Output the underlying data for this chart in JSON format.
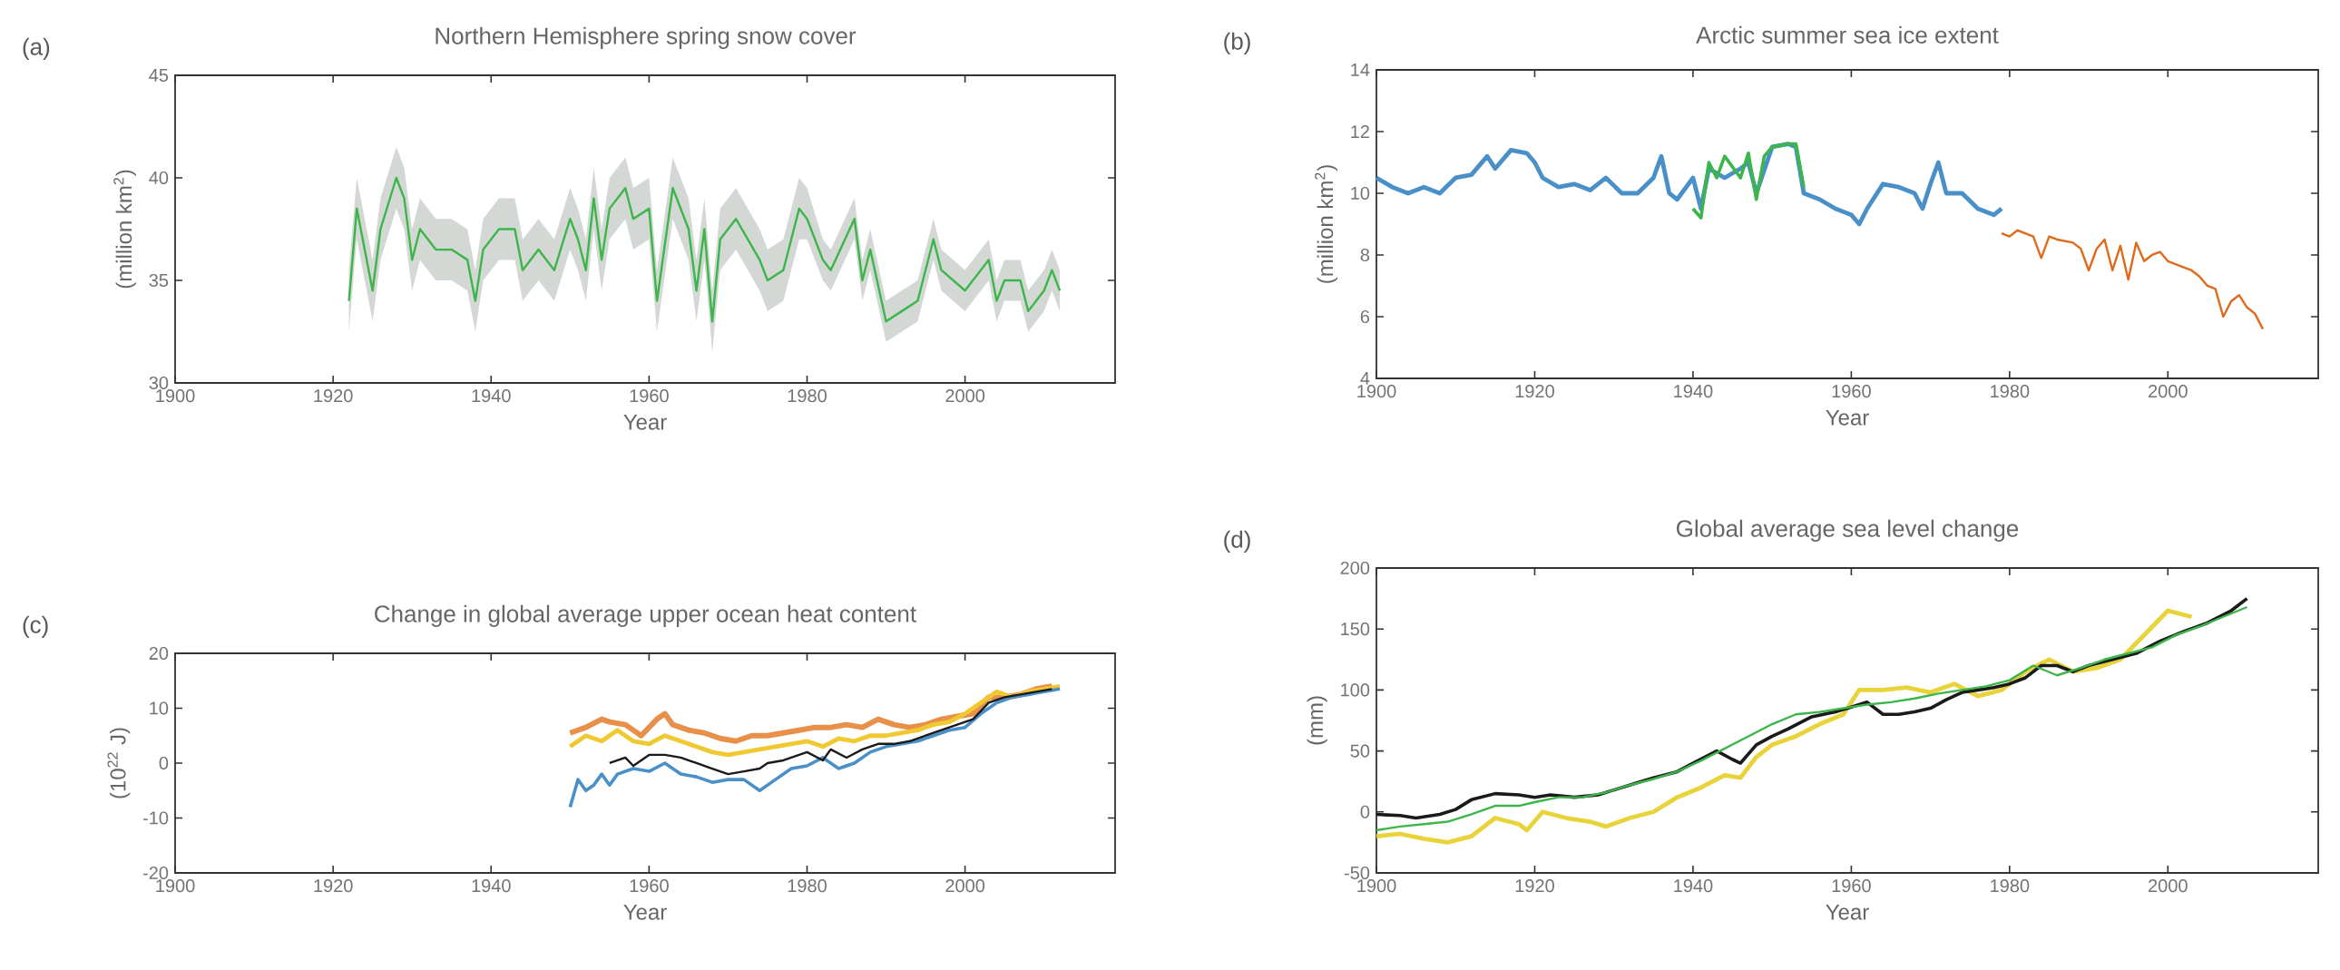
{
  "chart_data": [
    {
      "type": "line",
      "title": "Northern Hemisphere spring snow cover",
      "xlabel": "Year",
      "ylabel": "(million km$^{2}$)",
      "annotations": [
        "(a)"
      ],
      "marker": "none",
      "xlim": [
        1900,
        2019
      ],
      "ylim": [
        30,
        45
      ],
      "xticks": [
        1900,
        1920,
        1940,
        1960,
        1980,
        2000
      ],
      "yticks": [
        30,
        35,
        40,
        45
      ],
      "series": [
        {
          "color": "#3cb54a",
          "x": [
            1922,
            1923,
            1925,
            1926,
            1928,
            1929,
            1930,
            1931,
            1933,
            1935,
            1937,
            1938,
            1939,
            1941,
            1943,
            1944,
            1946,
            1948,
            1950,
            1951,
            1952,
            1953,
            1954,
            1955,
            1957,
            1958,
            1960,
            1961,
            1963,
            1965,
            1966,
            1967,
            1968,
            1969,
            1971,
            1974,
            1975,
            1977,
            1979,
            1980,
            1982,
            1983,
            1986,
            1987,
            1988,
            1990,
            1992,
            1994,
            1996,
            1997,
            2000,
            2003,
            2004,
            2005,
            2007,
            2008,
            2010,
            2011,
            2012
          ],
          "values": [
            34,
            38.5,
            34.5,
            37.5,
            40,
            39,
            36,
            37.5,
            36.5,
            36.5,
            36,
            34,
            36.5,
            37.5,
            37.5,
            35.5,
            36.5,
            35.5,
            38,
            37,
            35.5,
            39,
            36,
            38.5,
            39.5,
            38,
            38.5,
            34,
            39.5,
            37.5,
            34.5,
            37.5,
            33,
            37,
            38,
            36,
            35,
            35.5,
            38.5,
            38,
            36,
            35.5,
            38,
            35,
            36.5,
            33,
            33.5,
            34,
            37,
            35.5,
            34.5,
            36,
            34,
            35,
            35,
            33.5,
            34.5,
            35.5,
            34.5
          ],
          "lower": [
            32.5,
            37,
            33,
            36,
            38.5,
            37.5,
            34.5,
            36,
            35,
            35,
            34.5,
            32.5,
            35,
            36,
            36,
            34,
            35,
            34,
            36.5,
            35.5,
            34,
            37.5,
            34.5,
            37,
            38,
            36.5,
            37,
            32.5,
            38,
            36,
            33,
            36,
            31.5,
            35.5,
            36.5,
            34.5,
            33.5,
            34,
            37,
            37,
            35,
            34.5,
            37,
            34,
            35.5,
            32,
            32.5,
            33,
            36,
            34.5,
            33.5,
            35,
            33,
            34,
            34,
            32.5,
            33.5,
            34.5,
            33.5
          ],
          "upper": [
            35.5,
            40,
            36,
            39,
            41.5,
            40.5,
            37.5,
            39,
            38,
            38,
            37.5,
            35.5,
            38,
            39,
            39,
            37,
            38,
            37,
            39.5,
            38.5,
            37,
            40.5,
            37.5,
            40,
            41,
            39.5,
            40,
            35.5,
            41,
            39,
            36,
            39,
            34.5,
            38.5,
            39.5,
            37.5,
            36.5,
            37,
            40,
            39.5,
            37,
            36.5,
            39,
            36,
            37.5,
            34,
            34.5,
            35,
            38,
            36.5,
            35.5,
            37,
            35,
            36,
            36,
            34.5,
            35.5,
            36.5,
            35.5
          ]
        }
      ]
    },
    {
      "type": "line",
      "title": "Arctic summer sea ice extent",
      "xlabel": "Year",
      "ylabel": "(million km$^{2}$)",
      "annotations": [
        "(b)"
      ],
      "marker": "none",
      "xlim": [
        1900,
        2019
      ],
      "ylim": [
        4,
        14
      ],
      "xticks": [
        1900,
        1920,
        1940,
        1960,
        1980,
        2000
      ],
      "yticks": [
        4,
        6,
        8,
        10,
        12,
        14
      ],
      "series": [
        {
          "color": "#4a90c8",
          "x": [
            1900,
            1902,
            1904,
            1906,
            1908,
            1910,
            1912,
            1914,
            1915,
            1917,
            1919,
            1920,
            1921,
            1923,
            1925,
            1927,
            1929,
            1931,
            1933,
            1935,
            1936,
            1937,
            1938,
            1940,
            1941,
            1942,
            1944,
            1946,
            1947,
            1948,
            1950,
            1952,
            1953,
            1954,
            1956,
            1958,
            1960,
            1961,
            1962,
            1964,
            1966,
            1968,
            1969,
            1970,
            1971,
            1972,
            1974,
            1976,
            1978,
            1979
          ],
          "values": [
            10.5,
            10.2,
            10.0,
            10.2,
            10.0,
            10.5,
            10.6,
            11.2,
            10.8,
            11.4,
            11.3,
            11.0,
            10.5,
            10.2,
            10.3,
            10.1,
            10.5,
            10.0,
            10.0,
            10.5,
            11.2,
            10.0,
            9.8,
            10.5,
            9.5,
            10.8,
            10.5,
            10.8,
            11.0,
            10.0,
            11.5,
            11.6,
            11.5,
            10.0,
            9.8,
            9.5,
            9.3,
            9.0,
            9.5,
            10.3,
            10.2,
            10.0,
            9.5,
            10.3,
            11.0,
            10.0,
            10.0,
            9.5,
            9.3,
            9.5
          ]
        },
        {
          "color": "#3cb54a",
          "x": [
            1940,
            1941,
            1942,
            1943,
            1944,
            1946,
            1947,
            1948,
            1949,
            1950,
            1952,
            1953,
            1954
          ],
          "values": [
            9.5,
            9.2,
            11.0,
            10.5,
            11.2,
            10.5,
            11.3,
            9.8,
            11.2,
            11.5,
            11.6,
            11.6,
            10.2
          ]
        },
        {
          "color": "#e06a1c",
          "x": [
            1979,
            1980,
            1981,
            1983,
            1984,
            1985,
            1986,
            1988,
            1989,
            1990,
            1991,
            1992,
            1993,
            1994,
            1995,
            1996,
            1997,
            1998,
            1999,
            2000,
            2002,
            2003,
            2004,
            2005,
            2006,
            2007,
            2008,
            2009,
            2010,
            2011,
            2012
          ],
          "values": [
            8.7,
            8.6,
            8.8,
            8.6,
            7.9,
            8.6,
            8.5,
            8.4,
            8.2,
            7.5,
            8.2,
            8.5,
            7.5,
            8.3,
            7.2,
            8.4,
            7.8,
            8.0,
            8.1,
            7.8,
            7.6,
            7.5,
            7.3,
            7.0,
            6.9,
            6.0,
            6.5,
            6.7,
            6.3,
            6.1,
            5.6
          ]
        }
      ]
    },
    {
      "type": "line",
      "title": "Change in global average upper ocean heat content",
      "xlabel": "Year",
      "ylabel": "(10$^{22}$ J)",
      "annotations": [
        "(c)"
      ],
      "marker": "none",
      "xlim": [
        1900,
        2019
      ],
      "ylim": [
        -20,
        20
      ],
      "xticks": [
        1900,
        1920,
        1940,
        1960,
        1980,
        2000
      ],
      "yticks": [
        -20,
        -10,
        0,
        10,
        20
      ],
      "series": [
        {
          "color": "#e8904a",
          "x": [
            1950,
            1952,
            1954,
            1955,
            1957,
            1959,
            1961,
            1962,
            1963,
            1965,
            1967,
            1969,
            1971,
            1973,
            1975,
            1977,
            1979,
            1981,
            1983,
            1985,
            1987,
            1989,
            1991,
            1993,
            1995,
            1997,
            1999,
            2001,
            2003,
            2005,
            2007,
            2009,
            2011
          ],
          "values": [
            5.5,
            6.5,
            8,
            7.5,
            7,
            5,
            8,
            9,
            7,
            6,
            5.5,
            4.5,
            4,
            5,
            5,
            5.5,
            6,
            6.5,
            6.5,
            7,
            6.5,
            8,
            7,
            6.5,
            7,
            8,
            8.5,
            9,
            12,
            12,
            12.5,
            13.5,
            14
          ]
        },
        {
          "color": "#f0c832",
          "x": [
            1950,
            1952,
            1954,
            1956,
            1958,
            1960,
            1962,
            1964,
            1966,
            1968,
            1970,
            1972,
            1974,
            1976,
            1978,
            1980,
            1982,
            1984,
            1986,
            1988,
            1990,
            1992,
            1994,
            1996,
            1998,
            2000,
            2002,
            2004,
            2006,
            2008,
            2010,
            2012
          ],
          "values": [
            3,
            5,
            4,
            6,
            4,
            3.5,
            5,
            4,
            3,
            2,
            1.5,
            2,
            2.5,
            3,
            3.5,
            4,
            3,
            4.5,
            4,
            5,
            5,
            5.5,
            6,
            7,
            7.5,
            9,
            11,
            13,
            12,
            13,
            13.5,
            14
          ]
        },
        {
          "color": "#4a90c8",
          "x": [
            1950,
            1951,
            1952,
            1953,
            1954,
            1955,
            1956,
            1958,
            1960,
            1962,
            1964,
            1966,
            1968,
            1970,
            1972,
            1974,
            1976,
            1978,
            1980,
            1982,
            1984,
            1986,
            1988,
            1990,
            1992,
            1994,
            1996,
            1998,
            2000,
            2002,
            2004,
            2006,
            2008,
            2010,
            2012
          ],
          "values": [
            -8,
            -3,
            -5,
            -4,
            -2,
            -4,
            -2,
            -1,
            -1.5,
            0,
            -2,
            -2.5,
            -3.5,
            -3,
            -3,
            -5,
            -3,
            -1,
            -0.5,
            1,
            -1,
            0,
            2,
            3,
            3.5,
            4,
            5,
            6,
            6.5,
            9,
            11,
            12,
            12.5,
            13,
            13.5
          ]
        },
        {
          "color": "#1a1a1a",
          "x": [
            1955,
            1957,
            1958,
            1960,
            1962,
            1964,
            1966,
            1968,
            1970,
            1972,
            1974,
            1975,
            1977,
            1979,
            1980,
            1982,
            1983,
            1985,
            1987,
            1989,
            1991,
            1993,
            1995,
            1997,
            1999,
            2001,
            2003,
            2005,
            2007,
            2009,
            2011
          ],
          "values": [
            0,
            1,
            -0.5,
            1.5,
            1.5,
            1,
            0,
            -1,
            -2,
            -1.5,
            -1,
            0,
            0.5,
            1.5,
            2,
            0.5,
            2.5,
            1,
            2.5,
            3.5,
            3.5,
            4,
            5,
            6,
            7,
            8,
            11,
            12,
            12.5,
            13,
            13.5
          ]
        }
      ]
    },
    {
      "type": "line",
      "title": "Global average sea level change",
      "xlabel": "Year",
      "ylabel": "(mm)",
      "annotations": [
        "(d)"
      ],
      "marker": "none",
      "xlim": [
        1900,
        2019
      ],
      "ylim": [
        -50,
        200
      ],
      "xticks": [
        1900,
        1920,
        1940,
        1960,
        1980,
        2000
      ],
      "yticks": [
        -50,
        0,
        50,
        100,
        150,
        200
      ],
      "series": [
        {
          "color": "#e8d43a",
          "x": [
            1900,
            1903,
            1906,
            1909,
            1912,
            1915,
            1918,
            1919,
            1921,
            1924,
            1927,
            1929,
            1932,
            1935,
            1938,
            1941,
            1944,
            1946,
            1948,
            1950,
            1953,
            1956,
            1959,
            1961,
            1964,
            1967,
            1970,
            1973,
            1976,
            1979,
            1982,
            1985,
            1988,
            1991,
            1994,
            1997,
            2000,
            2003
          ],
          "values": [
            -20,
            -18,
            -22,
            -25,
            -20,
            -5,
            -10,
            -15,
            0,
            -5,
            -8,
            -12,
            -5,
            0,
            12,
            20,
            30,
            28,
            45,
            55,
            62,
            72,
            80,
            100,
            100,
            102,
            98,
            105,
            95,
            100,
            115,
            125,
            115,
            118,
            125,
            145,
            165,
            160
          ]
        },
        {
          "color": "#1a1a1a",
          "x": [
            1900,
            1903,
            1905,
            1908,
            1910,
            1912,
            1915,
            1918,
            1920,
            1922,
            1925,
            1928,
            1930,
            1933,
            1935,
            1938,
            1940,
            1943,
            1945,
            1946,
            1948,
            1950,
            1952,
            1955,
            1958,
            1960,
            1962,
            1964,
            1966,
            1968,
            1970,
            1972,
            1974,
            1976,
            1978,
            1980,
            1982,
            1984,
            1986,
            1988,
            1990,
            1993,
            1996,
            1999,
            2002,
            2005,
            2008,
            2010
          ],
          "values": [
            -2,
            -3,
            -5,
            -2,
            2,
            10,
            15,
            14,
            12,
            14,
            12,
            14,
            18,
            24,
            28,
            33,
            40,
            50,
            43,
            40,
            55,
            62,
            68,
            78,
            82,
            86,
            90,
            80,
            80,
            82,
            85,
            92,
            98,
            100,
            102,
            105,
            110,
            120,
            120,
            115,
            120,
            125,
            130,
            140,
            148,
            155,
            165,
            175
          ]
        },
        {
          "color": "#3cb54a",
          "x": [
            1900,
            1903,
            1906,
            1909,
            1912,
            1915,
            1918,
            1920,
            1923,
            1926,
            1929,
            1932,
            1935,
            1938,
            1941,
            1944,
            1947,
            1950,
            1953,
            1956,
            1959,
            1962,
            1965,
            1968,
            1971,
            1974,
            1977,
            1980,
            1983,
            1986,
            1989,
            1992,
            1995,
            1998,
            2001,
            2004,
            2007,
            2010
          ],
          "values": [
            -15,
            -12,
            -10,
            -8,
            -2,
            5,
            5,
            8,
            12,
            12,
            16,
            22,
            27,
            33,
            42,
            52,
            62,
            72,
            80,
            82,
            85,
            88,
            90,
            93,
            97,
            100,
            103,
            108,
            120,
            112,
            118,
            125,
            130,
            135,
            145,
            152,
            160,
            168
          ]
        }
      ]
    }
  ]
}
